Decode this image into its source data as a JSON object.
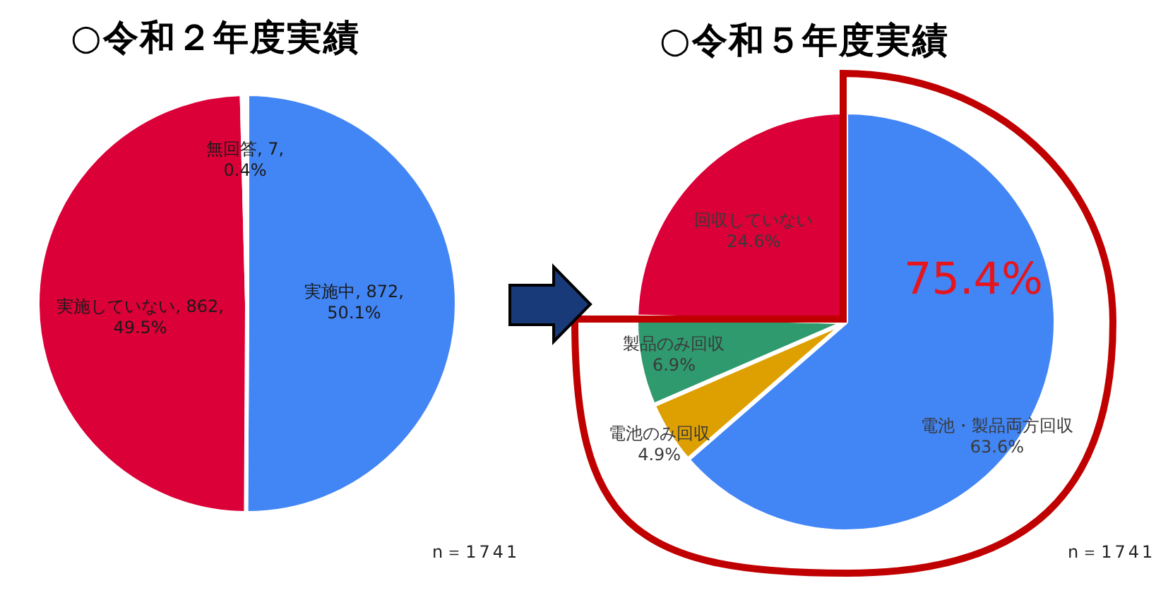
{
  "chart_data": [
    {
      "type": "pie",
      "title": "○令和２年度実績",
      "categories": [
        "実施中",
        "実施していない",
        "無回答"
      ],
      "values": [
        872,
        862,
        7
      ],
      "colors": [
        "#4285f4",
        "#db0037",
        "#ffffff"
      ],
      "value_labels": [
        "872, 50.1%",
        "862, 49.5%",
        "7, 0.4%"
      ],
      "annotations": [
        "n＝1741"
      ]
    },
    {
      "type": "pie",
      "title": "○令和５年度実績",
      "categories": [
        "電池・製品両方回収",
        "電池のみ回収",
        "製品のみ回収",
        "回収していない"
      ],
      "values": [
        63.6,
        4.9,
        6.9,
        24.6
      ],
      "colors": [
        "#4285f4",
        "#dea000",
        "#2f9a6e",
        "#db0037"
      ],
      "value_labels": [
        "63.6%",
        "4.9%",
        "6.9%",
        "24.6%"
      ],
      "annotations": [
        "75.4%",
        "n＝1741"
      ]
    }
  ]
}
